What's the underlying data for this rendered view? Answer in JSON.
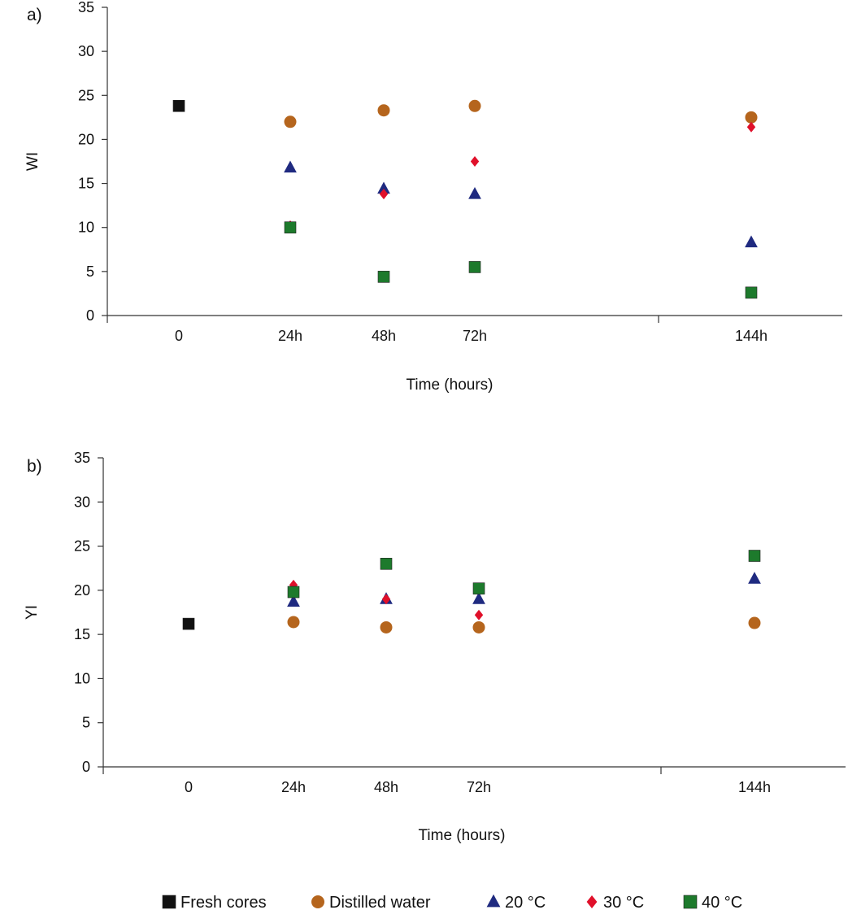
{
  "colors": {
    "fresh_cores": "#111111",
    "distilled_water": "#b5651d",
    "temp_20": "#1f2a80",
    "temp_30": "#e0102a",
    "temp_40": "#1d7a2c",
    "axis": "#333333"
  },
  "legend": {
    "placement": "bottom-center",
    "items": [
      {
        "label": "Fresh cores",
        "marker": "square",
        "color": "#111111"
      },
      {
        "label": "Distilled water",
        "marker": "circle",
        "color": "#b5651d"
      },
      {
        "label": "20 °C",
        "marker": "triangle",
        "color": "#1f2a80"
      },
      {
        "label": "30 °C",
        "marker": "diamond",
        "color": "#e0102a"
      },
      {
        "label": "40 °C",
        "marker": "square",
        "color": "#1d7a2c"
      }
    ]
  },
  "chart_data": [
    {
      "type": "scatter",
      "panel_label": "a)",
      "xlabel": "Time (hours)",
      "ylabel": "WI",
      "ylim": [
        0,
        35
      ],
      "yticks": [
        0,
        5,
        10,
        15,
        20,
        25,
        30,
        35
      ],
      "xticks": [
        "0",
        "24h",
        "48h",
        "72h",
        "144h"
      ],
      "grid": false,
      "series": [
        {
          "name": "Fresh cores",
          "marker": "square",
          "color": "#111111",
          "points": [
            {
              "x": "0",
              "y": 23.8
            }
          ]
        },
        {
          "name": "Distilled water",
          "marker": "circle",
          "color": "#b5651d",
          "points": [
            {
              "x": "24h",
              "y": 22.0
            },
            {
              "x": "48h",
              "y": 23.3
            },
            {
              "x": "72h",
              "y": 23.8
            },
            {
              "x": "144h",
              "y": 22.5
            }
          ]
        },
        {
          "name": "20 °C",
          "marker": "triangle",
          "color": "#1f2a80",
          "points": [
            {
              "x": "24h",
              "y": 16.8
            },
            {
              "x": "48h",
              "y": 14.4
            },
            {
              "x": "72h",
              "y": 13.8
            },
            {
              "x": "144h",
              "y": 8.3
            }
          ]
        },
        {
          "name": "30 °C",
          "marker": "diamond",
          "color": "#e0102a",
          "points": [
            {
              "x": "24h",
              "y": 10.2
            },
            {
              "x": "48h",
              "y": 13.8
            },
            {
              "x": "72h",
              "y": 17.5
            },
            {
              "x": "144h",
              "y": 21.4
            }
          ]
        },
        {
          "name": "40 °C",
          "marker": "square",
          "color": "#1d7a2c",
          "points": [
            {
              "x": "24h",
              "y": 10.0
            },
            {
              "x": "48h",
              "y": 4.4
            },
            {
              "x": "72h",
              "y": 5.5
            },
            {
              "x": "144h",
              "y": 2.6
            }
          ]
        }
      ]
    },
    {
      "type": "scatter",
      "panel_label": "b)",
      "xlabel": "Time (hours)",
      "ylabel": "YI",
      "ylim": [
        0,
        35
      ],
      "yticks": [
        0,
        5,
        10,
        15,
        20,
        25,
        30,
        35
      ],
      "xticks": [
        "0",
        "24h",
        "48h",
        "72h",
        "144h"
      ],
      "grid": false,
      "series": [
        {
          "name": "Fresh cores",
          "marker": "square",
          "color": "#111111",
          "points": [
            {
              "x": "0",
              "y": 16.2
            }
          ]
        },
        {
          "name": "Distilled water",
          "marker": "circle",
          "color": "#b5651d",
          "points": [
            {
              "x": "24h",
              "y": 16.4
            },
            {
              "x": "48h",
              "y": 15.8
            },
            {
              "x": "72h",
              "y": 15.8
            },
            {
              "x": "144h",
              "y": 16.3
            }
          ]
        },
        {
          "name": "20 °C",
          "marker": "triangle",
          "color": "#1f2a80",
          "points": [
            {
              "x": "24h",
              "y": 18.7
            },
            {
              "x": "48h",
              "y": 19.0
            },
            {
              "x": "72h",
              "y": 19.0
            },
            {
              "x": "144h",
              "y": 21.3
            }
          ]
        },
        {
          "name": "30 °C",
          "marker": "diamond",
          "color": "#e0102a",
          "points": [
            {
              "x": "24h",
              "y": 20.6
            },
            {
              "x": "48h",
              "y": 19.0
            },
            {
              "x": "72h",
              "y": 17.2
            },
            {
              "x": "144h",
              "y": 23.9
            }
          ]
        },
        {
          "name": "40 °C",
          "marker": "square",
          "color": "#1d7a2c",
          "points": [
            {
              "x": "24h",
              "y": 19.8
            },
            {
              "x": "48h",
              "y": 23.0
            },
            {
              "x": "72h",
              "y": 20.2
            },
            {
              "x": "144h",
              "y": 23.9
            }
          ]
        }
      ]
    }
  ]
}
